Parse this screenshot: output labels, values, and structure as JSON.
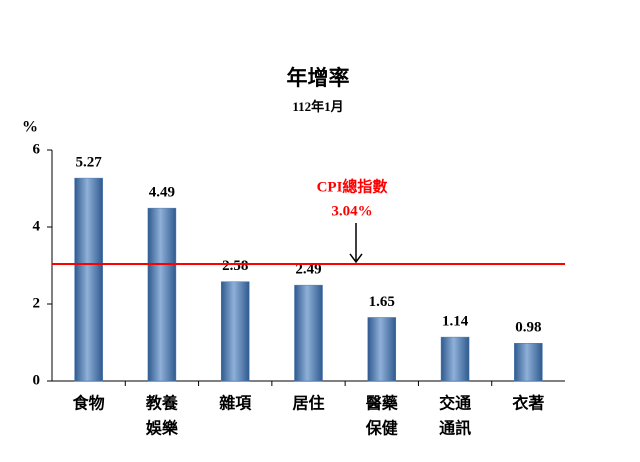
{
  "chart_data": {
    "type": "bar",
    "title": "年增率",
    "subtitle": "112年1月",
    "y_label": "%",
    "categories": [
      [
        "食物"
      ],
      [
        "教養",
        "娛樂"
      ],
      [
        "雜項"
      ],
      [
        "居住"
      ],
      [
        "醫藥",
        "保健"
      ],
      [
        "交通",
        "通訊"
      ],
      [
        "衣著"
      ]
    ],
    "values": [
      5.27,
      4.49,
      2.58,
      2.49,
      1.65,
      1.14,
      0.98
    ],
    "color": "#4a78b0",
    "ylim": [
      0,
      6
    ],
    "yticks": [
      0,
      2,
      4,
      6
    ],
    "grid": false,
    "reference": {
      "name": "CPI總指數",
      "value": 3.04,
      "label": "3.04%",
      "color": "#ff0000"
    }
  }
}
